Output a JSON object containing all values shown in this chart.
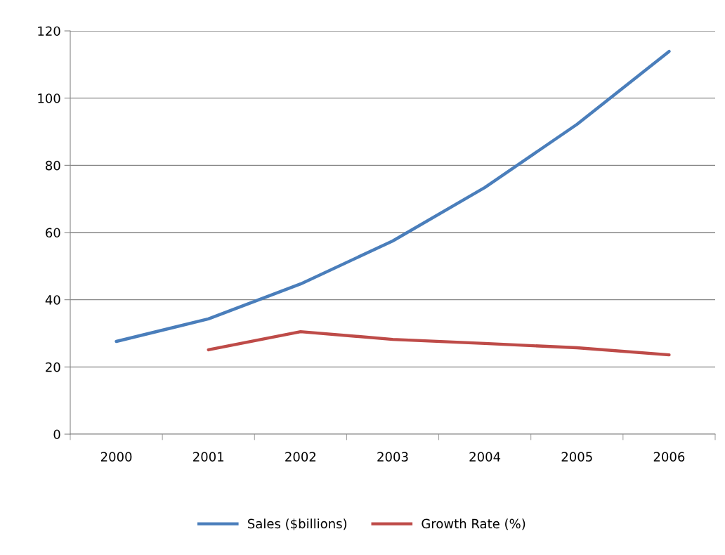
{
  "chart_data": {
    "type": "line",
    "categories": [
      "2000",
      "2001",
      "2002",
      "2003",
      "2004",
      "2005",
      "2006"
    ],
    "series": [
      {
        "name": "Sales ($billions)",
        "color": "#4a7ebb",
        "values": [
          27.6,
          34.3,
          44.7,
          57.5,
          73.4,
          92.2,
          113.9
        ]
      },
      {
        "name": "Growth Rate (%)",
        "color": "#be4b48",
        "values": [
          null,
          25.1,
          30.5,
          28.2,
          27.0,
          25.7,
          23.6
        ]
      }
    ],
    "ylim": [
      0,
      120
    ],
    "yticks": [
      0,
      20,
      40,
      60,
      80,
      100,
      120
    ],
    "grid": "y",
    "legend": "bottom",
    "marker": "none",
    "line_style": "solid"
  }
}
